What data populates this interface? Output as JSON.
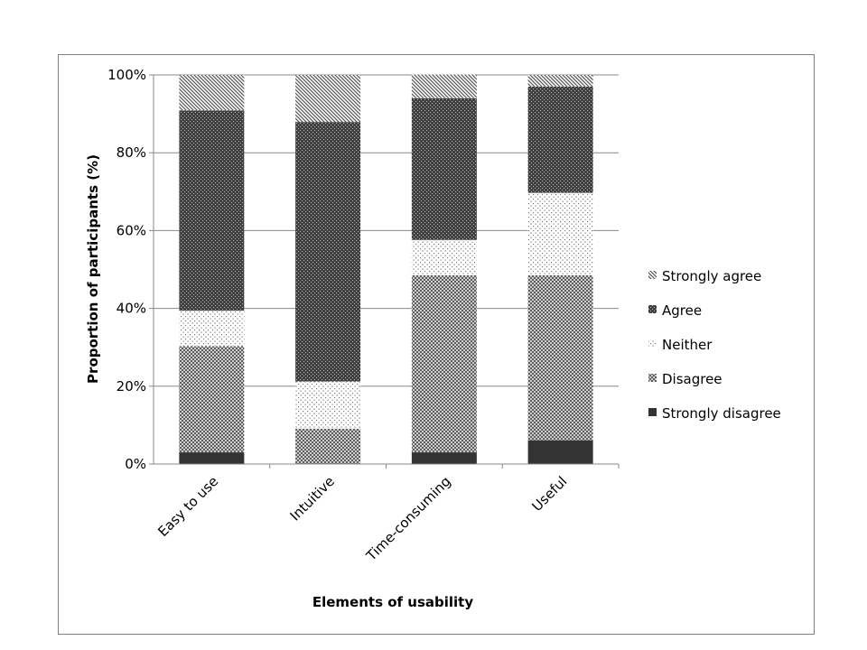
{
  "chart_data": {
    "type": "bar",
    "stacked": true,
    "title": "",
    "xlabel": "Elements of usability",
    "ylabel": "Proportion of participants (%)",
    "ylim": [
      0,
      100
    ],
    "yticks": [
      "0%",
      "20%",
      "40%",
      "60%",
      "80%",
      "100%"
    ],
    "grid": true,
    "legend_position": "right",
    "categories": [
      "Easy to use",
      "Intuitive",
      "Time-consuming",
      "Useful"
    ],
    "series": [
      {
        "name": "Strongly disagree",
        "pattern": "solid",
        "color": "#333333",
        "values": [
          3.0,
          0.0,
          3.0,
          6.1
        ]
      },
      {
        "name": "Disagree",
        "pattern": "crosshatch",
        "color": "#6e6e6e",
        "values": [
          27.3,
          9.1,
          45.5,
          42.4
        ]
      },
      {
        "name": "Neither",
        "pattern": "sparse-dots",
        "color": "#d9d9d9",
        "values": [
          9.1,
          12.1,
          9.1,
          21.2
        ]
      },
      {
        "name": "Agree",
        "pattern": "dense-dots",
        "color": "#444444",
        "values": [
          51.5,
          66.7,
          36.4,
          27.3
        ]
      },
      {
        "name": "Strongly agree",
        "pattern": "diagonal",
        "color": "#555555",
        "values": [
          9.1,
          12.1,
          6.1,
          3.0
        ]
      }
    ]
  }
}
